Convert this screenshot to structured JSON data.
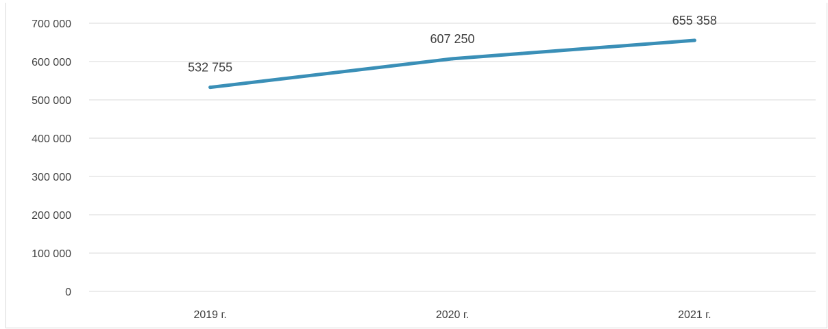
{
  "chart_data": {
    "type": "line",
    "categories": [
      "2019 г.",
      "2020 г.",
      "2021 г."
    ],
    "series": [
      {
        "values": [
          532755,
          607250,
          655358
        ],
        "labels": [
          "532 755",
          "607 250",
          "655 358"
        ],
        "color": "#3a8fb7"
      }
    ],
    "y_ticks": [
      {
        "value": 0,
        "label": "0"
      },
      {
        "value": 100000,
        "label": "100 000"
      },
      {
        "value": 200000,
        "label": "200 000"
      },
      {
        "value": 300000,
        "label": "300 000"
      },
      {
        "value": 400000,
        "label": "400 000"
      },
      {
        "value": 500000,
        "label": "500 000"
      },
      {
        "value": 600000,
        "label": "600 000"
      },
      {
        "value": 700000,
        "label": "700 000"
      }
    ],
    "ylim": [
      0,
      700000
    ],
    "grid": true,
    "legend": "none",
    "gridline_color": "#d9d9d9",
    "text_color": "#404040"
  }
}
